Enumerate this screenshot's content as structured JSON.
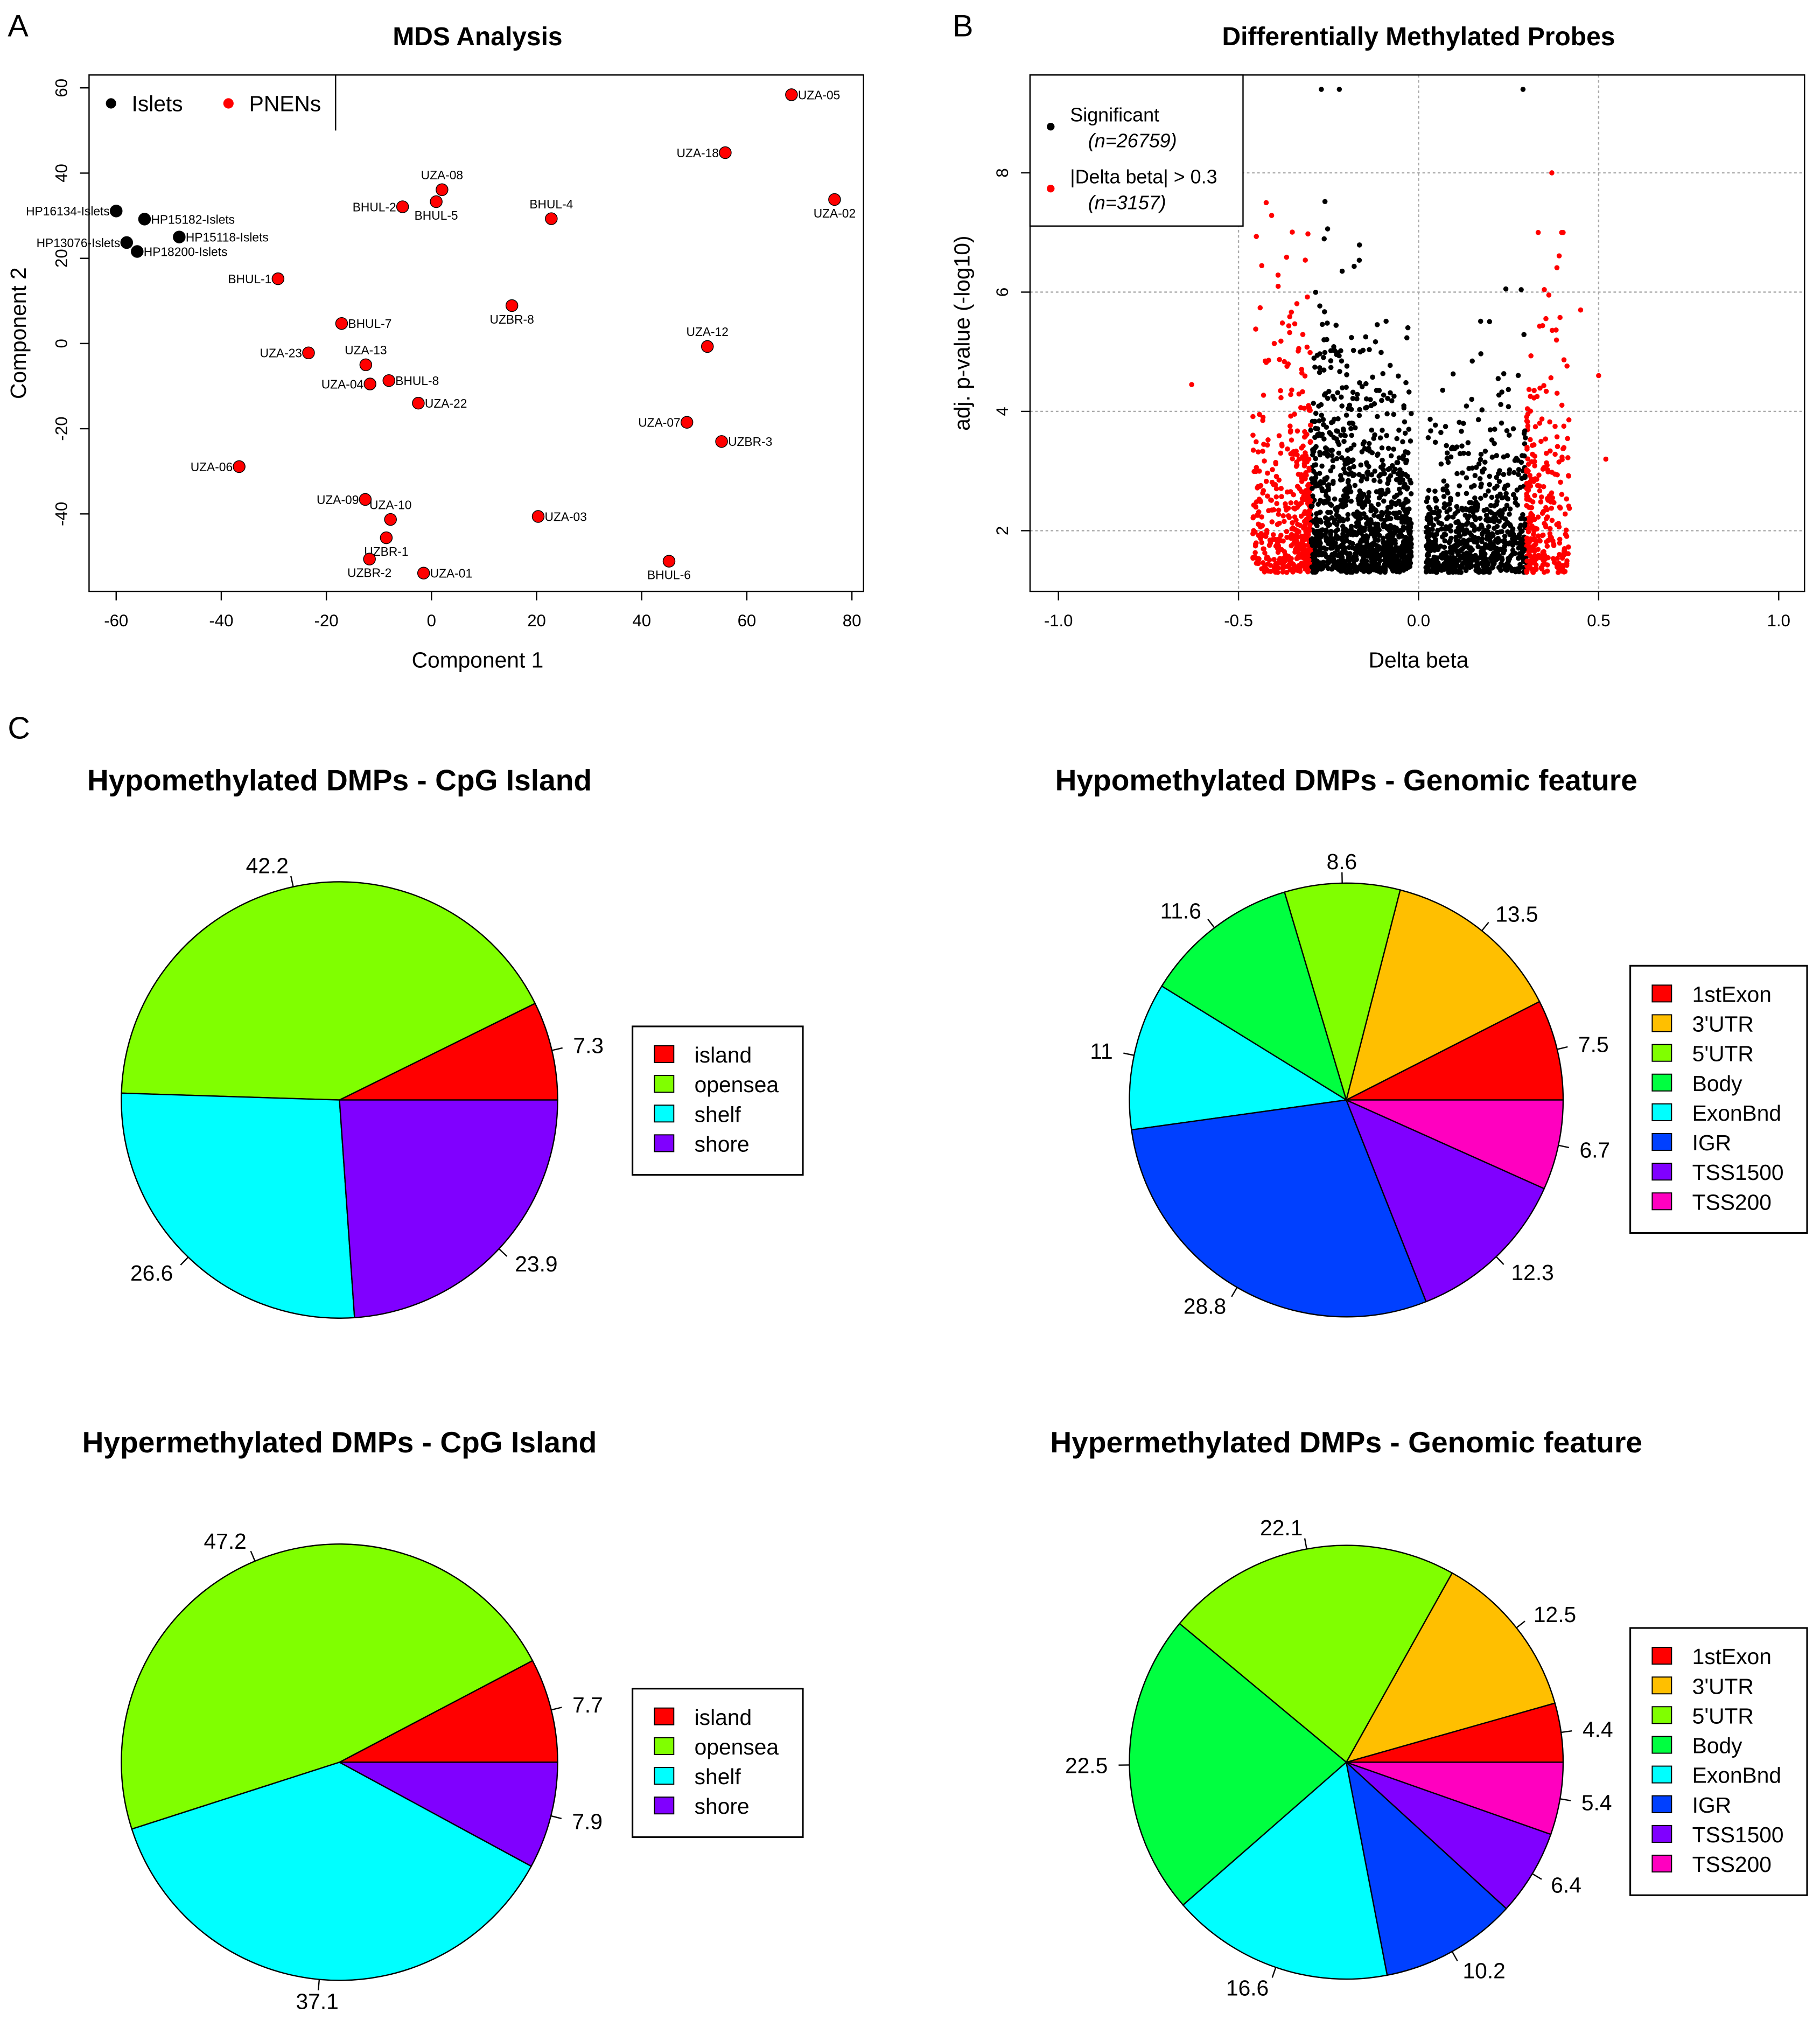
{
  "panel_labels": [
    "A",
    "B",
    "C"
  ],
  "chart_data": [
    {
      "type": "scatter",
      "title": "MDS Analysis",
      "xlabel": "Component 1",
      "ylabel": "Component 2",
      "xlim": [
        -65,
        83
      ],
      "ylim": [
        -58,
        63
      ],
      "xticks": [
        -60,
        -40,
        -20,
        0,
        20,
        40,
        60,
        80
      ],
      "yticks": [
        -40,
        -20,
        0,
        20,
        40,
        60
      ],
      "legend": {
        "placement": "top-left",
        "entries": [
          {
            "label": "Islets",
            "color": "#000000"
          },
          {
            "label": "PNENs",
            "color": "#FF0000"
          }
        ]
      },
      "points": [
        {
          "label": "HP16134-Islets",
          "group": "Islets",
          "x": -60,
          "y": 31.1
        },
        {
          "label": "HP15182-Islets",
          "group": "Islets",
          "x": -54.6,
          "y": 29.2
        },
        {
          "label": "HP15118-Islets",
          "group": "Islets",
          "x": -48,
          "y": 25
        },
        {
          "label": "HP13076-Islets",
          "group": "Islets",
          "x": -58,
          "y": 23.7
        },
        {
          "label": "HP18200-Islets",
          "group": "Islets",
          "x": -56,
          "y": 21.6
        },
        {
          "label": "BHUL-1",
          "group": "PNENs",
          "x": -29.2,
          "y": 15.2
        },
        {
          "label": "UZA-08",
          "group": "PNENs",
          "x": 2,
          "y": 36.1
        },
        {
          "label": "BHUL-5",
          "group": "PNENs",
          "x": 0.9,
          "y": 33.3
        },
        {
          "label": "BHUL-2",
          "group": "PNENs",
          "x": -5.5,
          "y": 32.1
        },
        {
          "label": "BHUL-4",
          "group": "PNENs",
          "x": 22.8,
          "y": 29.3
        },
        {
          "label": "UZA-18",
          "group": "PNENs",
          "x": 55.9,
          "y": 44.8
        },
        {
          "label": "UZA-05",
          "group": "PNENs",
          "x": 68.5,
          "y": 58.4
        },
        {
          "label": "UZA-02",
          "group": "PNENs",
          "x": 76.7,
          "y": 33.8
        },
        {
          "label": "UZBR-8",
          "group": "PNENs",
          "x": 15.3,
          "y": 8.9
        },
        {
          "label": "BHUL-7",
          "group": "PNENs",
          "x": -17.1,
          "y": 4.7
        },
        {
          "label": "UZA-12",
          "group": "PNENs",
          "x": 52.5,
          "y": -0.7
        },
        {
          "label": "UZA-23",
          "group": "PNENs",
          "x": -23.4,
          "y": -2.2
        },
        {
          "label": "UZA-13",
          "group": "PNENs",
          "x": -12.5,
          "y": -5
        },
        {
          "label": "UZA-04",
          "group": "PNENs",
          "x": -11.7,
          "y": -9.5
        },
        {
          "label": "BHUL-8",
          "group": "PNENs",
          "x": -8.1,
          "y": -8.7
        },
        {
          "label": "UZA-22",
          "group": "PNENs",
          "x": -2.5,
          "y": -14
        },
        {
          "label": "UZA-07",
          "group": "PNENs",
          "x": 48.6,
          "y": -18.5
        },
        {
          "label": "UZBR-3",
          "group": "PNENs",
          "x": 55.2,
          "y": -23
        },
        {
          "label": "UZA-06",
          "group": "PNENs",
          "x": -36.6,
          "y": -28.9
        },
        {
          "label": "UZA-09",
          "group": "PNENs",
          "x": -12.6,
          "y": -36.6
        },
        {
          "label": "UZA-10",
          "group": "PNENs",
          "x": -7.8,
          "y": -41.3
        },
        {
          "label": "UZA-03",
          "group": "PNENs",
          "x": 20.3,
          "y": -40.6
        },
        {
          "label": "UZBR-1",
          "group": "PNENs",
          "x": -8.6,
          "y": -45.6
        },
        {
          "label": "UZBR-2",
          "group": "PNENs",
          "x": -11.8,
          "y": -50.6
        },
        {
          "label": "UZA-01",
          "group": "PNENs",
          "x": -1.5,
          "y": -53.9
        },
        {
          "label": "BHUL-6",
          "group": "PNENs",
          "x": 45.2,
          "y": -51.1
        }
      ]
    },
    {
      "type": "scatter",
      "title": "Differentially Methylated Probes",
      "xlabel": "Delta beta",
      "ylabel": "adj. p-value (-log10)",
      "xlim": [
        -1.08,
        1.08
      ],
      "ylim": [
        1.0,
        9.7
      ],
      "xticks": [
        -1.0,
        -0.5,
        0.0,
        0.5,
        1.0
      ],
      "xtick_labels": [
        "-1.0",
        "-0.5",
        "0.0",
        "0.5",
        "1.0"
      ],
      "yticks": [
        2,
        4,
        6,
        8
      ],
      "legend": {
        "placement": "top-left",
        "entries": [
          {
            "label": "Significant",
            "n": "(n=26759)",
            "color": "#000000"
          },
          {
            "label": "|Delta beta| > 0.3",
            "n": "(n=3157)",
            "color": "#FF0000"
          }
        ]
      },
      "threshold_delta_beta": 0.3,
      "notes": "Dense point cloud; black for 0.03<|delta beta|<0.3, red for |delta beta|>0.3; max adj p ~9.4"
    },
    {
      "type": "pie",
      "title": "Hypomethylated DMPs - CpG Island",
      "labels": [
        "island",
        "opensea",
        "shelf",
        "shore"
      ],
      "values": [
        7.3,
        42.2,
        26.6,
        23.9
      ],
      "colors": [
        "#FF0000",
        "#80FF00",
        "#00FFFF",
        "#8000FF"
      ],
      "legend": "right"
    },
    {
      "type": "pie",
      "title": "Hypomethylated DMPs - Genomic feature",
      "labels": [
        "1stExon",
        "3'UTR",
        "5'UTR",
        "Body",
        "ExonBnd",
        "IGR",
        "TSS1500",
        "TSS200"
      ],
      "values": [
        7.5,
        13.5,
        8.6,
        11.6,
        11,
        28.8,
        12.3,
        6.7
      ],
      "value_labels": [
        "7.5",
        "13.5",
        "8.6",
        "11.6",
        "11",
        "28.8",
        "12.3",
        "6.7"
      ],
      "colors": [
        "#FF0000",
        "#FFBF00",
        "#80FF00",
        "#00FF40",
        "#00FFFF",
        "#0040FF",
        "#8000FF",
        "#FF00BF"
      ],
      "legend": "right"
    },
    {
      "type": "pie",
      "title": "Hypermethylated DMPs - CpG Island",
      "labels": [
        "island",
        "opensea",
        "shelf",
        "shore"
      ],
      "values": [
        7.7,
        47.2,
        37.1,
        7.9
      ],
      "colors": [
        "#FF0000",
        "#80FF00",
        "#00FFFF",
        "#8000FF"
      ],
      "legend": "right"
    },
    {
      "type": "pie",
      "title": "Hypermethylated DMPs - Genomic feature",
      "labels": [
        "1stExon",
        "3'UTR",
        "5'UTR",
        "Body",
        "ExonBnd",
        "IGR",
        "TSS1500",
        "TSS200"
      ],
      "values": [
        4.4,
        12.5,
        22.1,
        22.5,
        16.6,
        10.2,
        6.4,
        5.4
      ],
      "value_labels": [
        "4.4",
        "12.5",
        "22.1",
        "22.5",
        "16.6",
        "10.2",
        "6.4",
        "5.4"
      ],
      "colors": [
        "#FF0000",
        "#FFBF00",
        "#80FF00",
        "#00FF40",
        "#00FFFF",
        "#0040FF",
        "#8000FF",
        "#FF00BF"
      ],
      "legend": "right"
    }
  ]
}
